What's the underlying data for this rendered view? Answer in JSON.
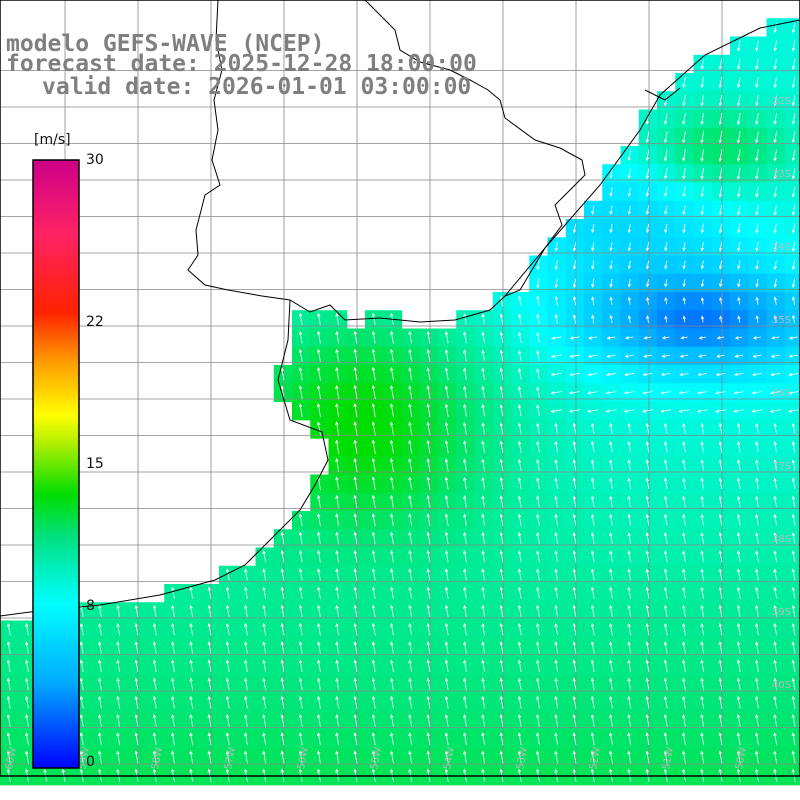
{
  "title": {
    "model": "modelo GEFS-WAVE (NCEP)",
    "forecast": "forecast date: 2025-12-28 18:00:00",
    "valid": "valid date: 2026-01-01 03:00:00"
  },
  "colorbar": {
    "unit": "[m/s]",
    "ticks": [
      {
        "label": "30",
        "value": 30
      },
      {
        "label": "22",
        "value": 22
      },
      {
        "label": "15",
        "value": 15
      },
      {
        "label": "8",
        "value": 8
      },
      {
        "label": "0",
        "value": 0
      }
    ],
    "stops": [
      "#0000ff",
      "#00aaff",
      "#00ffff",
      "#00e676",
      "#00dd00",
      "#66e600",
      "#ffff00",
      "#ff9900",
      "#ff0000",
      "#ff2266",
      "#cc0088"
    ]
  },
  "axes": {
    "lat_labels": [
      "32S",
      "33S",
      "34S",
      "35S",
      "36S",
      "37S",
      "38S",
      "39S",
      "40S"
    ],
    "lon_labels": [
      "60W",
      "59W",
      "58W",
      "57W",
      "56W",
      "55W",
      "54W",
      "53W",
      "52W",
      "51W",
      "50W"
    ]
  }
}
